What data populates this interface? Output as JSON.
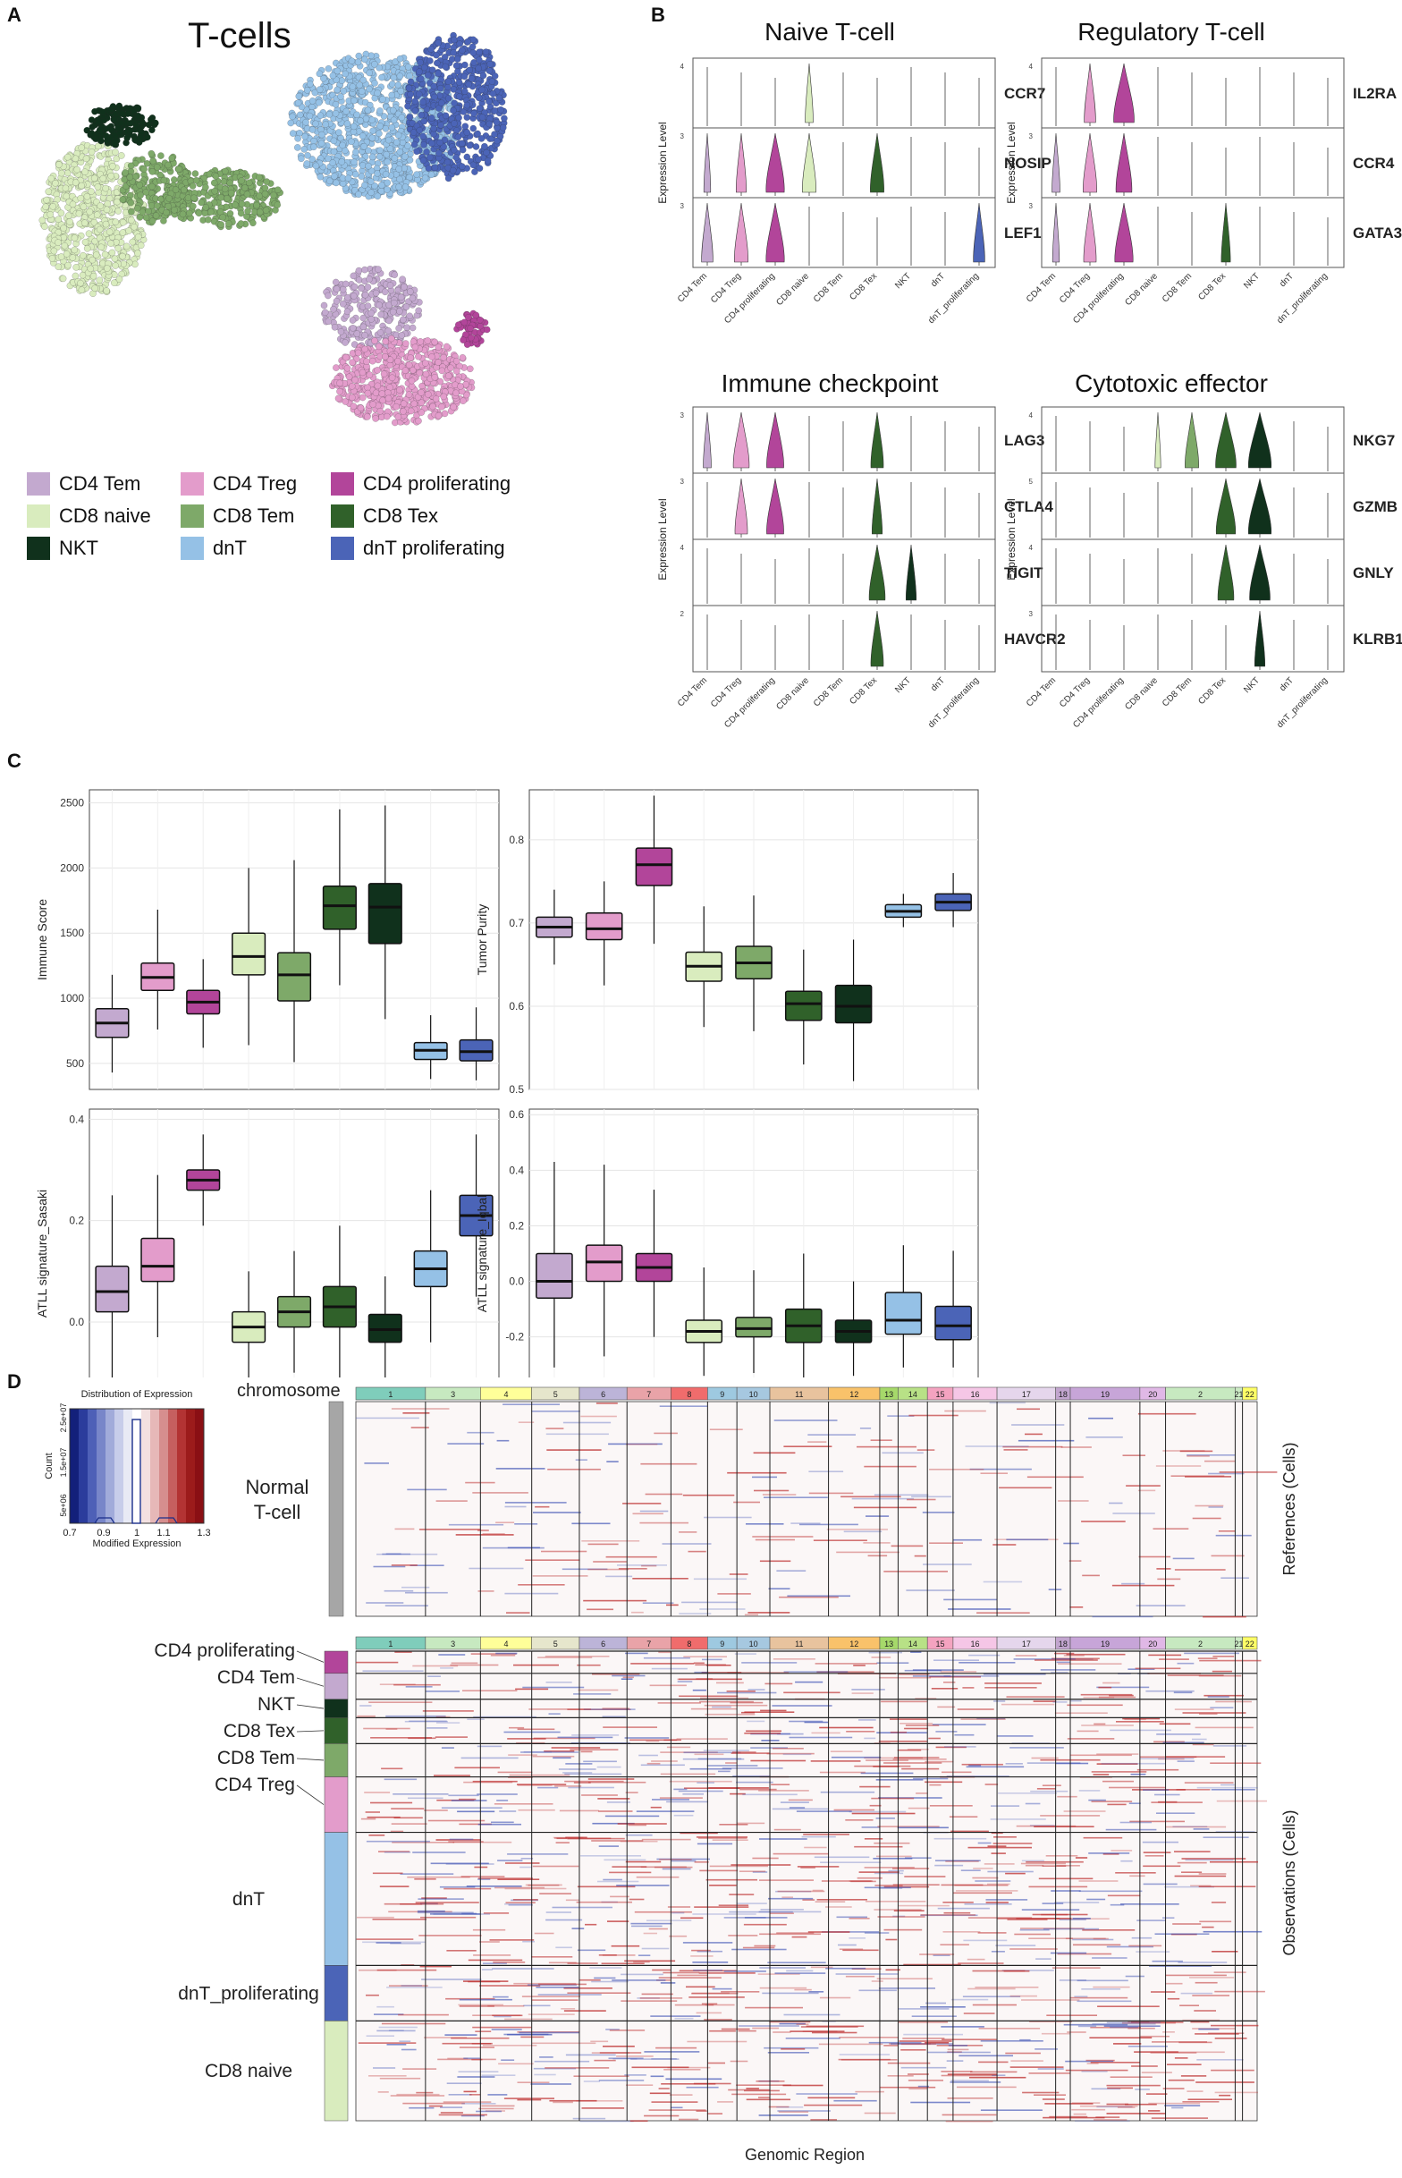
{
  "panel_labels": [
    "A",
    "B",
    "C",
    "D"
  ],
  "umap": {
    "title": "T-cells",
    "legend": [
      {
        "label": "CD4 Tem",
        "color": "#c3a9cf"
      },
      {
        "label": "CD4 Treg",
        "color": "#e39ccb"
      },
      {
        "label": "CD4 proliferating",
        "color": "#b2459a"
      },
      {
        "label": "CD8 naive",
        "color": "#d9ecbe"
      },
      {
        "label": "CD8 Tem",
        "color": "#7ea969"
      },
      {
        "label": "CD8 Tex",
        "color": "#30612a"
      },
      {
        "label": "NKT",
        "color": "#10311c"
      },
      {
        "label": "dnT",
        "color": "#95c1e6"
      },
      {
        "label": "dnT proliferating",
        "color": "#4b64b7"
      }
    ]
  },
  "violin": {
    "cell_types": [
      "CD4 Tem",
      "CD4 Treg",
      "CD4 proliferating",
      "CD8 naive",
      "CD8 Tem",
      "CD8 Tex",
      "NKT",
      "dnT",
      "dnT_proliferating"
    ],
    "colors": [
      "#c3a9cf",
      "#e39ccb",
      "#b2459a",
      "#d9ecbe",
      "#7ea969",
      "#30612a",
      "#10311c",
      "#95c1e6",
      "#4b64b7"
    ],
    "ylabel": "Expression Level",
    "panels": [
      {
        "title": "Naive T-cell",
        "genes": [
          {
            "name": "CCR7",
            "ytick": "4",
            "w": [
              0,
              0,
              0,
              0.35,
              0,
              0,
              0,
              0,
              0
            ]
          },
          {
            "name": "NOSIP",
            "ytick": "3",
            "w": [
              0.3,
              0.45,
              0.8,
              0.6,
              0,
              0.6,
              0,
              0,
              0
            ]
          },
          {
            "name": "LEF1",
            "ytick": "3",
            "w": [
              0.5,
              0.6,
              0.8,
              0,
              0,
              0,
              0,
              0,
              0.5
            ]
          }
        ]
      },
      {
        "title": "Regulatory T-cell",
        "genes": [
          {
            "name": "IL2RA",
            "ytick": "4",
            "w": [
              0,
              0.5,
              0.9,
              0,
              0,
              0,
              0,
              0,
              0
            ]
          },
          {
            "name": "CCR4",
            "ytick": "3",
            "w": [
              0.35,
              0.6,
              0.7,
              0,
              0,
              0,
              0,
              0,
              0
            ]
          },
          {
            "name": "GATA3",
            "ytick": "3",
            "w": [
              0.3,
              0.55,
              0.8,
              0,
              0,
              0.4,
              0,
              0,
              0
            ]
          }
        ]
      },
      {
        "title": "Immune checkpoint",
        "genes": [
          {
            "name": "LAG3",
            "ytick": "3",
            "w": [
              0.35,
              0.7,
              0.75,
              0,
              0,
              0.55,
              0,
              0,
              0
            ]
          },
          {
            "name": "CTLA4",
            "ytick": "3",
            "w": [
              0,
              0.55,
              0.75,
              0,
              0,
              0.45,
              0,
              0,
              0
            ]
          },
          {
            "name": "TIGIT",
            "ytick": "4",
            "w": [
              0,
              0,
              0,
              0,
              0,
              0.7,
              0.45,
              0,
              0
            ]
          },
          {
            "name": "HAVCR2",
            "ytick": "2",
            "w": [
              0,
              0,
              0,
              0,
              0,
              0.55,
              0,
              0,
              0
            ]
          }
        ]
      },
      {
        "title": "Cytotoxic effector",
        "genes": [
          {
            "name": "NKG7",
            "ytick": "4",
            "w": [
              0,
              0,
              0,
              0.25,
              0.6,
              0.9,
              1.0,
              0,
              0
            ]
          },
          {
            "name": "GZMB",
            "ytick": "5",
            "w": [
              0,
              0,
              0,
              0,
              0,
              0.85,
              1.0,
              0,
              0
            ]
          },
          {
            "name": "GNLY",
            "ytick": "4",
            "w": [
              0,
              0,
              0,
              0,
              0,
              0.7,
              0.9,
              0,
              0
            ]
          },
          {
            "name": "KLRB1",
            "ytick": "3",
            "w": [
              0,
              0,
              0,
              0,
              0,
              0,
              0.45,
              0,
              0
            ]
          }
        ]
      }
    ]
  },
  "chart_data": [
    {
      "type": "boxplot",
      "ylabel": "Immune Score",
      "ylim": [
        300,
        2600
      ],
      "yticks": [
        500,
        1000,
        1500,
        2000,
        2500
      ],
      "categories": [
        "CD4 Tem",
        "CD4 Treg",
        "CD4 proliferating",
        "CD8 naive",
        "CD8 Tem",
        "CD8 Tex",
        "NKT",
        "dnT",
        "dnT_proliferating"
      ],
      "boxes": [
        {
          "min": 430,
          "q1": 700,
          "median": 810,
          "q3": 920,
          "max": 1180
        },
        {
          "min": 760,
          "q1": 1060,
          "median": 1160,
          "q3": 1270,
          "max": 1680
        },
        {
          "min": 620,
          "q1": 880,
          "median": 970,
          "q3": 1060,
          "max": 1300
        },
        {
          "min": 640,
          "q1": 1180,
          "median": 1320,
          "q3": 1500,
          "max": 2000
        },
        {
          "min": 510,
          "q1": 980,
          "median": 1180,
          "q3": 1350,
          "max": 2060
        },
        {
          "min": 1100,
          "q1": 1530,
          "median": 1710,
          "q3": 1860,
          "max": 2450
        },
        {
          "min": 840,
          "q1": 1420,
          "median": 1700,
          "q3": 1880,
          "max": 2480
        },
        {
          "min": 380,
          "q1": 530,
          "median": 600,
          "q3": 660,
          "max": 870
        },
        {
          "min": 370,
          "q1": 520,
          "median": 590,
          "q3": 680,
          "max": 930
        }
      ]
    },
    {
      "type": "boxplot",
      "ylabel": "Tumor Purity",
      "ylim": [
        0.5,
        0.86
      ],
      "yticks": [
        0.5,
        0.6,
        0.7,
        0.8
      ],
      "categories": [
        "CD4 Tem",
        "CD4 Treg",
        "CD4 proliferating",
        "CD8 naive",
        "CD8 Tem",
        "CD8 Tex",
        "NKT",
        "dnT",
        "dnT_proliferating"
      ],
      "boxes": [
        {
          "min": 0.65,
          "q1": 0.683,
          "median": 0.695,
          "q3": 0.707,
          "max": 0.74
        },
        {
          "min": 0.625,
          "q1": 0.68,
          "median": 0.693,
          "q3": 0.712,
          "max": 0.75
        },
        {
          "min": 0.675,
          "q1": 0.745,
          "median": 0.77,
          "q3": 0.79,
          "max": 0.853
        },
        {
          "min": 0.575,
          "q1": 0.63,
          "median": 0.648,
          "q3": 0.665,
          "max": 0.72
        },
        {
          "min": 0.57,
          "q1": 0.633,
          "median": 0.652,
          "q3": 0.672,
          "max": 0.733
        },
        {
          "min": 0.53,
          "q1": 0.583,
          "median": 0.603,
          "q3": 0.618,
          "max": 0.668
        },
        {
          "min": 0.51,
          "q1": 0.58,
          "median": 0.6,
          "q3": 0.625,
          "max": 0.68
        },
        {
          "min": 0.695,
          "q1": 0.707,
          "median": 0.714,
          "q3": 0.722,
          "max": 0.735
        },
        {
          "min": 0.695,
          "q1": 0.715,
          "median": 0.725,
          "q3": 0.735,
          "max": 0.76
        }
      ]
    },
    {
      "type": "boxplot",
      "ylabel": "ATLL signature_Sasaki",
      "ylim": [
        -0.15,
        0.42
      ],
      "yticks": [
        0.0,
        0.2,
        0.4
      ],
      "yticklabels": [
        "0.0",
        "0.2",
        "0.4"
      ],
      "categories": [
        "CD4 Tem",
        "CD4 Treg",
        "CD4 proliferating",
        "CD8 naive",
        "CD8 Tem",
        "CD8 Tex",
        "NKT",
        "dnT",
        "dnT_proliferating"
      ],
      "boxes": [
        {
          "min": -0.11,
          "q1": 0.02,
          "median": 0.06,
          "q3": 0.11,
          "max": 0.25
        },
        {
          "min": -0.03,
          "q1": 0.08,
          "median": 0.11,
          "q3": 0.165,
          "max": 0.29
        },
        {
          "min": 0.19,
          "q1": 0.26,
          "median": 0.28,
          "q3": 0.3,
          "max": 0.37
        },
        {
          "min": -0.13,
          "q1": -0.04,
          "median": -0.01,
          "q3": 0.02,
          "max": 0.1
        },
        {
          "min": -0.1,
          "q1": -0.01,
          "median": 0.02,
          "q3": 0.05,
          "max": 0.14
        },
        {
          "min": -0.11,
          "q1": -0.01,
          "median": 0.03,
          "q3": 0.07,
          "max": 0.19
        },
        {
          "min": -0.12,
          "q1": -0.04,
          "median": -0.015,
          "q3": 0.015,
          "max": 0.09
        },
        {
          "min": -0.04,
          "q1": 0.07,
          "median": 0.105,
          "q3": 0.14,
          "max": 0.26
        },
        {
          "min": 0.05,
          "q1": 0.17,
          "median": 0.21,
          "q3": 0.25,
          "max": 0.37
        }
      ]
    },
    {
      "type": "boxplot",
      "ylabel": "ATLL signature_Iqbal",
      "ylim": [
        -0.42,
        0.62
      ],
      "yticks": [
        -0.4,
        -0.2,
        0.0,
        0.2,
        0.4,
        0.6
      ],
      "yticklabels": [
        "-0.4",
        "-0.2",
        "0.0",
        "0.2",
        "0.4",
        "0.6"
      ],
      "categories": [
        "CD4 Tem",
        "CD4 Treg",
        "CD4 proliferating",
        "CD8 naive",
        "CD8 Tem",
        "CD8 Tex",
        "NKT",
        "dnT",
        "dnT_proliferating"
      ],
      "boxes": [
        {
          "min": -0.31,
          "q1": -0.06,
          "median": 0.0,
          "q3": 0.1,
          "max": 0.43
        },
        {
          "min": -0.27,
          "q1": 0.0,
          "median": 0.07,
          "q3": 0.13,
          "max": 0.42
        },
        {
          "min": -0.2,
          "q1": 0.0,
          "median": 0.05,
          "q3": 0.1,
          "max": 0.33
        },
        {
          "min": -0.34,
          "q1": -0.22,
          "median": -0.18,
          "q3": -0.14,
          "max": 0.05
        },
        {
          "min": -0.33,
          "q1": -0.2,
          "median": -0.17,
          "q3": -0.13,
          "max": 0.04
        },
        {
          "min": -0.35,
          "q1": -0.22,
          "median": -0.16,
          "q3": -0.1,
          "max": 0.1
        },
        {
          "min": -0.34,
          "q1": -0.22,
          "median": -0.18,
          "q3": -0.14,
          "max": 0.0
        },
        {
          "min": -0.31,
          "q1": -0.19,
          "median": -0.14,
          "q3": -0.04,
          "max": 0.13
        },
        {
          "min": -0.31,
          "q1": -0.21,
          "median": -0.16,
          "q3": -0.09,
          "max": 0.11
        }
      ]
    }
  ],
  "cnv": {
    "colorkey_title": "Distribution of Expression",
    "colorkey_xlabel": "Modified Expression",
    "colorkey_ylabel": "Count",
    "colorkey_xticks": [
      "0.7",
      "0.9",
      "1",
      "1.1",
      "1.3"
    ],
    "colorkey_yticks": [
      "5e+06",
      "1.5e+07",
      "2.5e+07"
    ],
    "chromosome_label": "chromosome",
    "chromosomes": [
      "1",
      "3",
      "4",
      "5",
      "6",
      "7",
      "8",
      "9",
      "10",
      "11",
      "12",
      "13",
      "14",
      "15",
      "16",
      "17",
      "18",
      "19",
      "20",
      "2",
      "21",
      "22"
    ],
    "chromosome_colors": [
      "#7fcdbb",
      "#c7e9c0",
      "#ffff99",
      "#e6e6cc",
      "#bcb4d8",
      "#e9a3a8",
      "#f06c6c",
      "#9ec9e0",
      "#a6c8e0",
      "#e8c39e",
      "#f9c26a",
      "#a6d96a",
      "#b8e186",
      "#f4a3c0",
      "#f5c6e6",
      "#e5d6ec",
      "#c2a5cf",
      "#c7a5d8",
      "#e0b8e6",
      "#c7e9c0",
      "#ccebc5",
      "#ffff66"
    ],
    "reference_label": "Normal\nT-cell",
    "reference_axis": "References (Cells)",
    "observation_axis": "Observations (Cells)",
    "xlabel": "Genomic Region",
    "observation_groups": [
      {
        "label": "CD4 proliferating",
        "color": "#b2459a"
      },
      {
        "label": "CD4 Tem",
        "color": "#c3a9cf"
      },
      {
        "label": "NKT",
        "color": "#10311c"
      },
      {
        "label": "CD8 Tex",
        "color": "#30612a"
      },
      {
        "label": "CD8 Tem",
        "color": "#7ea969"
      },
      {
        "label": "CD4 Treg",
        "color": "#e39ccb"
      },
      {
        "label": "dnT",
        "color": "#95c1e6"
      },
      {
        "label": "dnT_proliferating",
        "color": "#4b64b7"
      },
      {
        "label": "CD8 naive",
        "color": "#d9ecbe"
      }
    ]
  }
}
